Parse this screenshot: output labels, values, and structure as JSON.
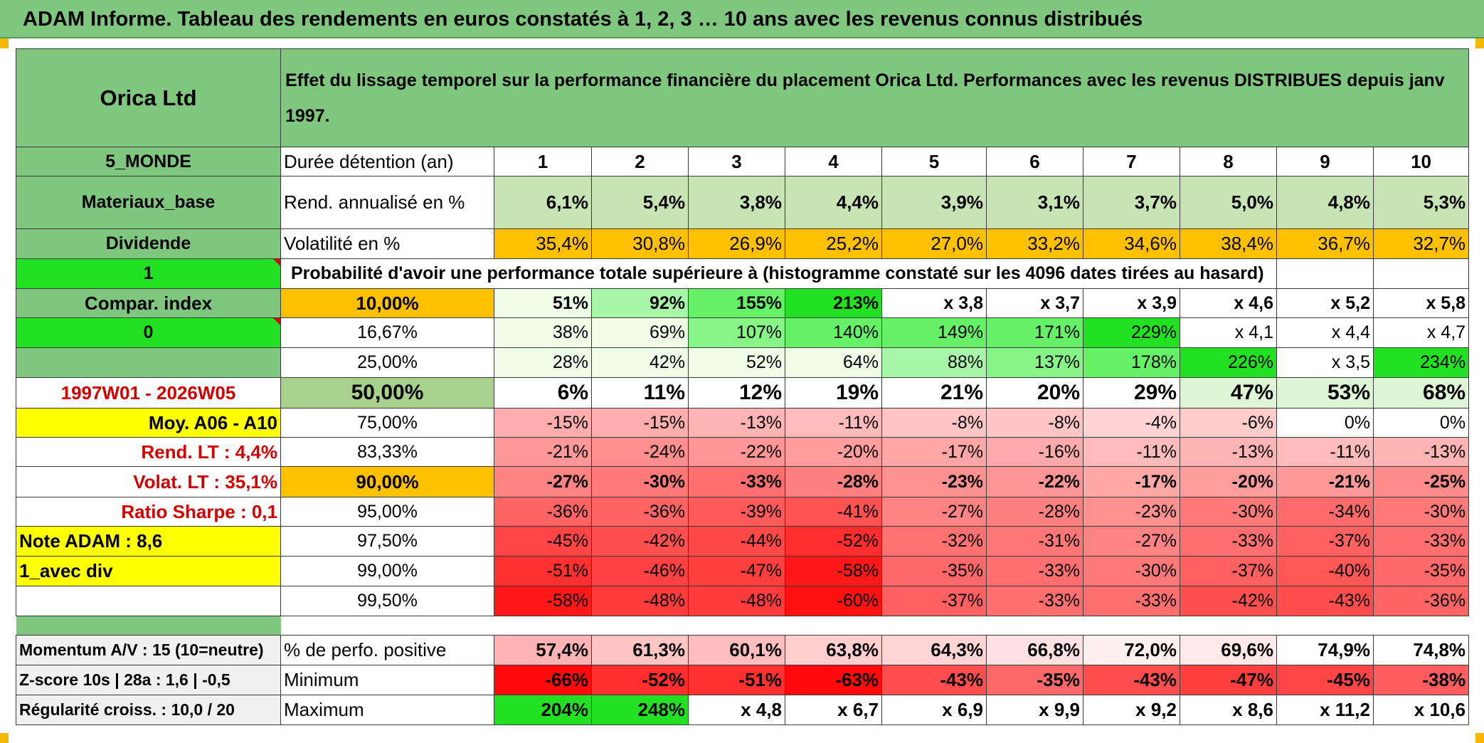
{
  "banner": "ADAM Informe. Tableau des rendements en euros constatés à 1, 2, 3 … 10 ans avec les revenus connus distribués",
  "fund": "Orica Ltd",
  "description": "Effet du lissage temporel sur la performance financière du placement Orica Ltd. Performances avec les revenus DISTRIBUES depuis janv 1997.",
  "side": {
    "region": "5_MONDE",
    "sector": "Materiaux_base",
    "type": "Dividende",
    "mode_value": "1",
    "compar_label": "Compar. index",
    "compar_value": "0",
    "period": "1997W01 - 2026W05",
    "moy": "Moy. A06 - A10",
    "rend_lt": "Rend. LT :   4,4%",
    "volat_lt": "Volat. LT :   35,1%",
    "sharpe": "Ratio Sharpe :    0,1",
    "note": "Note ADAM : 8,6",
    "div_mode": "1_avec div",
    "momentum": "Momentum A/V : 15 (10=neutre)",
    "zscore": "Z-score 10s | 28a : 1,6 | -0,5",
    "regularite": "Régularité croiss. : 10,0 / 20"
  },
  "labels": {
    "duree": "Durée détention (an)",
    "rend": "Rend. annualisé en %",
    "vol": "Volatilité en %",
    "proba": "Probabilité d'avoir une performance totale supérieure à (histogramme constaté sur les 4096 dates tirées au hasard)",
    "positive": "% de perfo. positive",
    "minimum": "Minimum",
    "maximum": "Maximum"
  },
  "years": [
    "1",
    "2",
    "3",
    "4",
    "5",
    "6",
    "7",
    "8",
    "9",
    "10"
  ],
  "rend": [
    "6,1%",
    "5,4%",
    "3,8%",
    "4,4%",
    "3,9%",
    "3,1%",
    "3,7%",
    "5,0%",
    "4,8%",
    "5,3%"
  ],
  "vol": [
    "35,4%",
    "30,8%",
    "26,9%",
    "25,2%",
    "27,0%",
    "33,2%",
    "34,6%",
    "38,4%",
    "36,7%",
    "32,7%"
  ],
  "rows": [
    {
      "pct": "10,00%",
      "vals": [
        "51%",
        "92%",
        "155%",
        "213%",
        "x 3,8",
        "x 3,7",
        "x 3,9",
        "x 4,6",
        "x 5,2",
        "x 5,8"
      ]
    },
    {
      "pct": "16,67%",
      "vals": [
        "38%",
        "69%",
        "107%",
        "140%",
        "149%",
        "171%",
        "229%",
        "x 4,1",
        "x 4,4",
        "x 4,7"
      ]
    },
    {
      "pct": "25,00%",
      "vals": [
        "28%",
        "42%",
        "52%",
        "64%",
        "88%",
        "137%",
        "178%",
        "226%",
        "x 3,5",
        "234%"
      ]
    },
    {
      "pct": "50,00%",
      "vals": [
        "6%",
        "11%",
        "12%",
        "19%",
        "21%",
        "20%",
        "29%",
        "47%",
        "53%",
        "68%"
      ]
    },
    {
      "pct": "75,00%",
      "vals": [
        "-15%",
        "-15%",
        "-13%",
        "-11%",
        "-8%",
        "-8%",
        "-4%",
        "-6%",
        "0%",
        "0%"
      ]
    },
    {
      "pct": "83,33%",
      "vals": [
        "-21%",
        "-24%",
        "-22%",
        "-20%",
        "-17%",
        "-16%",
        "-11%",
        "-13%",
        "-11%",
        "-13%"
      ]
    },
    {
      "pct": "90,00%",
      "vals": [
        "-27%",
        "-30%",
        "-33%",
        "-28%",
        "-23%",
        "-22%",
        "-17%",
        "-20%",
        "-21%",
        "-25%"
      ]
    },
    {
      "pct": "95,00%",
      "vals": [
        "-36%",
        "-36%",
        "-39%",
        "-41%",
        "-27%",
        "-28%",
        "-23%",
        "-30%",
        "-34%",
        "-30%"
      ]
    },
    {
      "pct": "97,50%",
      "vals": [
        "-45%",
        "-42%",
        "-44%",
        "-52%",
        "-32%",
        "-31%",
        "-27%",
        "-33%",
        "-37%",
        "-33%"
      ]
    },
    {
      "pct": "99,00%",
      "vals": [
        "-51%",
        "-46%",
        "-47%",
        "-58%",
        "-35%",
        "-33%",
        "-30%",
        "-37%",
        "-40%",
        "-35%"
      ]
    },
    {
      "pct": "99,50%",
      "vals": [
        "-58%",
        "-48%",
        "-48%",
        "-60%",
        "-37%",
        "-33%",
        "-33%",
        "-42%",
        "-43%",
        "-36%"
      ]
    }
  ],
  "positive": [
    "57,4%",
    "61,3%",
    "60,1%",
    "63,8%",
    "64,3%",
    "66,8%",
    "72,0%",
    "69,6%",
    "74,9%",
    "74,8%"
  ],
  "minimum": [
    "-66%",
    "-52%",
    "-51%",
    "-63%",
    "-43%",
    "-35%",
    "-43%",
    "-47%",
    "-45%",
    "-38%"
  ],
  "maximum": [
    "204%",
    "248%",
    "x 4,8",
    "x 6,7",
    "x 6,9",
    "x 9,9",
    "x 9,2",
    "x 8,6",
    "x 11,2",
    "x 10,6"
  ],
  "colors": {
    "header_green": "#7fc77f",
    "light_green": "#c8e4b4",
    "orange": "#ffc000",
    "yellow": "#ffff00",
    "bright_green": "#22e022",
    "red_text": "#d40000"
  }
}
